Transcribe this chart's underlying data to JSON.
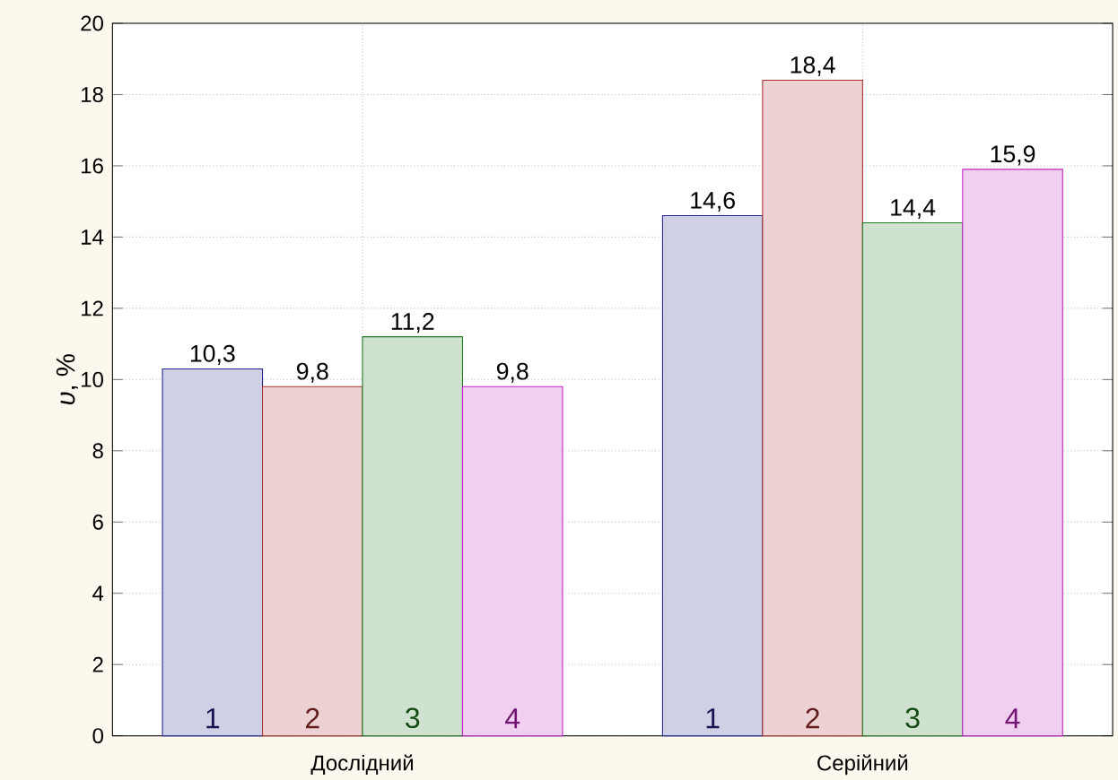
{
  "chart_data": {
    "type": "bar",
    "ylabel": "*υ*, %",
    "categories": [
      "Дослідний",
      "Серійний"
    ],
    "series": [
      {
        "name": "1",
        "color": "#23238c",
        "values": [
          10.3,
          14.6
        ],
        "value_labels": [
          "10,3",
          "14,6"
        ]
      },
      {
        "name": "2",
        "color": "#a83232",
        "values": [
          9.8,
          18.4
        ],
        "value_labels": [
          "9,8",
          "18,4"
        ]
      },
      {
        "name": "3",
        "color": "#237a23",
        "values": [
          11.2,
          14.4
        ],
        "value_labels": [
          "11,2",
          "14,4"
        ]
      },
      {
        "name": "4",
        "color": "#c023c0",
        "values": [
          9.8,
          15.9
        ],
        "value_labels": [
          "9,8",
          "15,9"
        ]
      }
    ],
    "ylim": [
      0,
      20
    ],
    "yticks": [
      0,
      2,
      4,
      6,
      8,
      10,
      12,
      14,
      16,
      18,
      20
    ],
    "grid": true
  }
}
